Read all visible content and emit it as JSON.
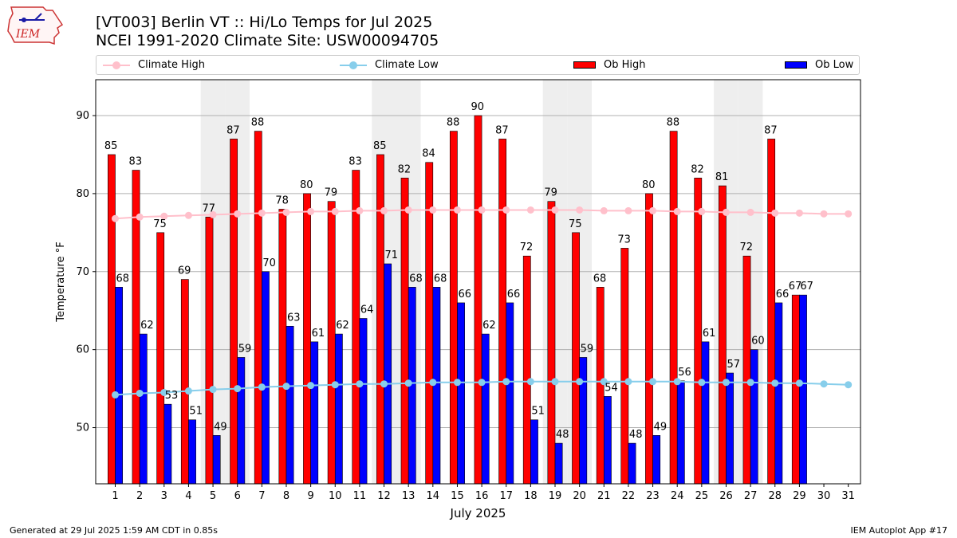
{
  "logo": {
    "text": "IEM"
  },
  "header": {
    "title_line1": "[VT003] Berlin  VT :: Hi/Lo Temps for Jul 2025",
    "title_line2": "NCEI 1991-2020 Climate Site: USW00094705"
  },
  "footer": {
    "left": "Generated at 29 Jul 2025 1:59 AM CDT in 0.85s",
    "right": "IEM Autoplot App #17"
  },
  "colors": {
    "ob_high": "#ff0000",
    "ob_low": "#0000ff",
    "climate_high": "#ffc0cb",
    "climate_low": "#87ceeb",
    "weekend_shade": "#eeeeee",
    "grid": "#b0b0b0"
  },
  "chart_data": {
    "type": "bar",
    "xlabel": "July 2025",
    "ylabel": "Temperature °F",
    "ylim": [
      42.8,
      94.6
    ],
    "yticks": [
      50,
      60,
      70,
      80,
      90
    ],
    "grid": "horizontal",
    "legend_position": "top",
    "categories": [
      "1",
      "2",
      "3",
      "4",
      "5",
      "6",
      "7",
      "8",
      "9",
      "10",
      "11",
      "12",
      "13",
      "14",
      "15",
      "16",
      "17",
      "18",
      "19",
      "20",
      "21",
      "22",
      "23",
      "24",
      "25",
      "26",
      "27",
      "28",
      "29",
      "30",
      "31"
    ],
    "shaded_days": [
      5,
      6,
      12,
      13,
      19,
      20,
      26,
      27
    ],
    "series": [
      {
        "name": "Ob High",
        "kind": "bar",
        "values": [
          85,
          83,
          75,
          69,
          77,
          87,
          88,
          78,
          80,
          79,
          83,
          85,
          82,
          84,
          88,
          90,
          87,
          72,
          79,
          75,
          68,
          73,
          80,
          88,
          82,
          81,
          72,
          87,
          67,
          null,
          null
        ]
      },
      {
        "name": "Ob Low",
        "kind": "bar",
        "values": [
          68,
          62,
          53,
          51,
          49,
          59,
          70,
          63,
          61,
          62,
          64,
          71,
          68,
          68,
          66,
          62,
          66,
          51,
          48,
          59,
          54,
          48,
          49,
          56,
          61,
          57,
          60,
          66,
          67,
          null,
          null
        ]
      },
      {
        "name": "Climate High",
        "kind": "line",
        "values": [
          76.8,
          77.0,
          77.1,
          77.2,
          77.3,
          77.4,
          77.5,
          77.6,
          77.7,
          77.7,
          77.8,
          77.8,
          77.9,
          77.9,
          77.9,
          77.9,
          77.9,
          77.9,
          77.9,
          77.9,
          77.8,
          77.8,
          77.8,
          77.7,
          77.7,
          77.6,
          77.6,
          77.5,
          77.5,
          77.4,
          77.4
        ]
      },
      {
        "name": "Climate Low",
        "kind": "line",
        "values": [
          54.2,
          54.4,
          54.5,
          54.7,
          54.9,
          55.0,
          55.2,
          55.3,
          55.4,
          55.5,
          55.6,
          55.6,
          55.7,
          55.8,
          55.8,
          55.8,
          55.9,
          55.9,
          55.9,
          55.9,
          55.9,
          55.9,
          55.9,
          55.9,
          55.8,
          55.8,
          55.8,
          55.7,
          55.7,
          55.6,
          55.5
        ]
      }
    ]
  },
  "legend": {
    "climate_high": "Climate High",
    "climate_low": "Climate Low",
    "ob_high": "Ob High",
    "ob_low": "Ob Low"
  }
}
